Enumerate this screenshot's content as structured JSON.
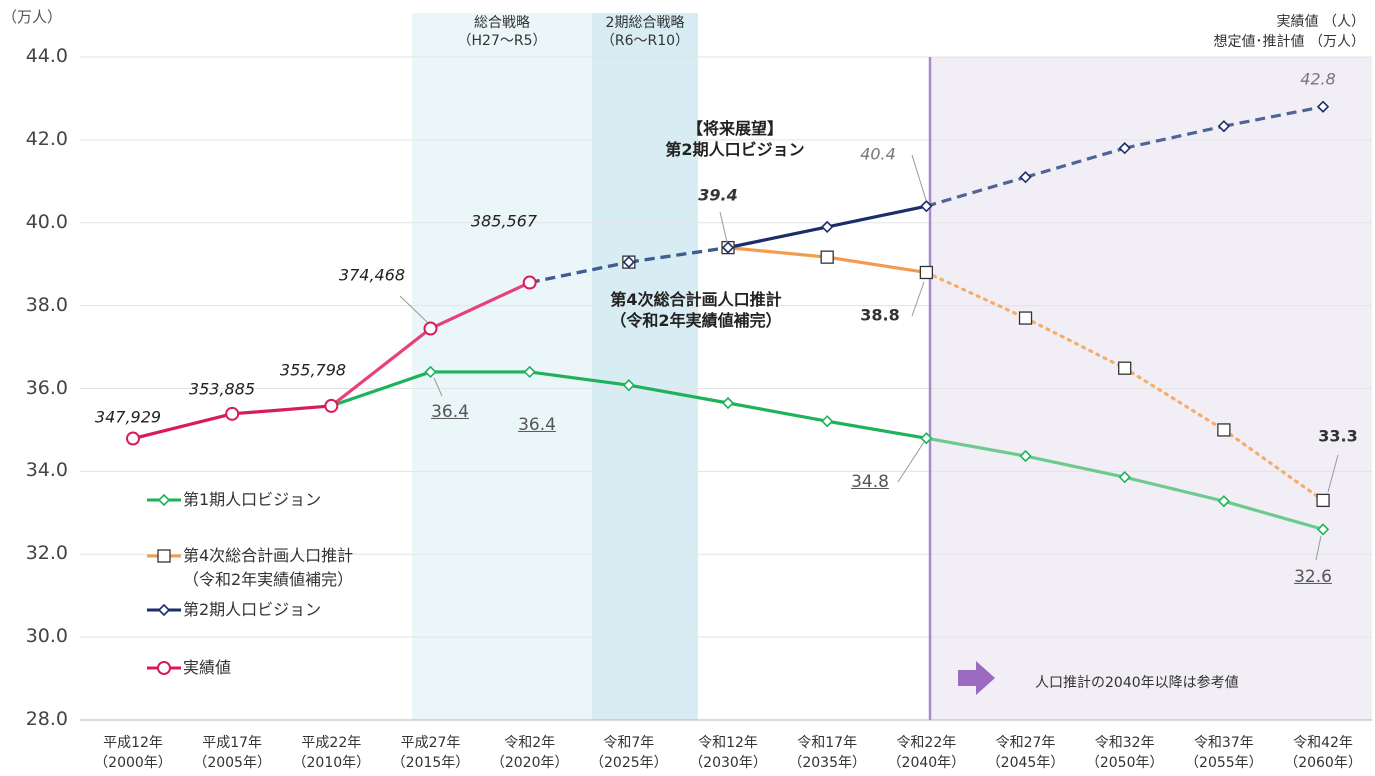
{
  "chart_data": {
    "type": "line",
    "y_unit": "（万人）",
    "unit_note": "実績値 （人）\n想定値･推計値 （万人）",
    "regions": [
      "総合戦略\n（H27～R5）",
      "2期総合戦略\n（R6～R10）"
    ],
    "reference_note": "人口推計の2040年以降は参考値",
    "annotations": [
      "【将来展望】\n第2期人口ビジョン",
      "第4次総合計画人口推計\n（令和2年実績値補完）"
    ],
    "categories": [
      "平成12年\n（2000年）",
      "平成17年\n（2005年）",
      "平成22年\n（2010年）",
      "平成27年\n（2015年）",
      "令和2年\n（2020年）",
      "令和7年\n（2025年）",
      "令和12年\n（2030年）",
      "令和17年\n（2035年）",
      "令和22年\n（2040年）",
      "令和27年\n（2045年）",
      "令和32年\n（2050年）",
      "令和37年\n（2055年）",
      "令和42年\n（2060年）"
    ],
    "ylim": [
      28,
      44
    ],
    "yticks": [
      {
        "value": 28,
        "label": "28.0"
      },
      {
        "value": 30,
        "label": "30.0"
      },
      {
        "value": 32,
        "label": "32.0"
      },
      {
        "value": 34,
        "label": "34.0"
      },
      {
        "value": 36,
        "label": "36.0"
      },
      {
        "value": 38,
        "label": "38.0"
      },
      {
        "value": 40,
        "label": "40.0"
      },
      {
        "value": 42,
        "label": "42.0"
      },
      {
        "value": 44,
        "label": "44.0"
      }
    ],
    "grid": true,
    "legend": "lower left",
    "series": [
      {
        "name": "第1期人口ビジョン",
        "color": "#1eb35a",
        "marker": "diamond",
        "values": [
          null,
          null,
          35.5798,
          36.4,
          36.4,
          36.08,
          35.65,
          35.21,
          34.8,
          34.37,
          33.86,
          33.28,
          32.6
        ],
        "value_labels": [
          null,
          null,
          null,
          "36.4",
          "36.4",
          null,
          null,
          null,
          "34.8",
          null,
          null,
          null,
          "32.6"
        ],
        "segments": [
          null,
          null,
          {
            "color": "#1eb35a",
            "style": "solid"
          },
          {
            "color": "#1eb35a",
            "style": "solid"
          },
          {
            "color": "#1eb35a",
            "style": "solid"
          },
          {
            "color": "#1eb35a",
            "style": "solid"
          },
          {
            "color": "#1eb35a",
            "style": "solid"
          },
          {
            "color": "#1eb35a",
            "style": "solid"
          },
          {
            "color": "#6ccb8c",
            "style": "solid"
          },
          {
            "color": "#6ccb8c",
            "style": "solid"
          },
          {
            "color": "#6ccb8c",
            "style": "solid"
          },
          {
            "color": "#6ccb8c",
            "style": "solid"
          }
        ]
      },
      {
        "name": "第4次総合計画人口推計\n（令和2年実績値補完）",
        "color": "#f39c4f",
        "marker": "square",
        "values": [
          null,
          null,
          null,
          null,
          38.5567,
          39.05,
          39.4,
          39.17,
          38.8,
          37.7,
          36.49,
          35.0,
          33.3
        ],
        "value_labels": [
          null,
          null,
          null,
          null,
          null,
          null,
          null,
          null,
          "38.8",
          null,
          null,
          null,
          "33.3"
        ],
        "segments": [
          null,
          null,
          null,
          null,
          {
            "color": "#3f5d91",
            "style": "dashed"
          },
          {
            "color": "#3f5d91",
            "style": "dashed"
          },
          {
            "color": "#f39c4f",
            "style": "solid"
          },
          {
            "color": "#f39c4f",
            "style": "solid"
          },
          {
            "color": "#f6ad6c",
            "style": "dotted"
          },
          {
            "color": "#f6ad6c",
            "style": "dotted"
          },
          {
            "color": "#f6ad6c",
            "style": "dotted"
          },
          {
            "color": "#f6ad6c",
            "style": "dotted"
          }
        ]
      },
      {
        "name": "第2期人口ビジョン",
        "color": "#1c2d6b",
        "marker": "diamond",
        "values": [
          null,
          null,
          null,
          null,
          38.5567,
          39.05,
          39.4,
          39.9,
          40.4,
          41.1,
          41.8,
          42.33,
          42.8
        ],
        "value_labels": [
          null,
          null,
          null,
          null,
          null,
          null,
          "39.4",
          null,
          "40.4",
          null,
          null,
          null,
          "42.8"
        ],
        "segments": [
          null,
          null,
          null,
          null,
          {
            "color": "#3f5d91",
            "style": "dashed"
          },
          {
            "color": "#3f5d91",
            "style": "dashed"
          },
          {
            "color": "#1c2d6b",
            "style": "solid"
          },
          {
            "color": "#1c2d6b",
            "style": "solid"
          },
          {
            "color": "#4f6598",
            "style": "dashed"
          },
          {
            "color": "#4f6598",
            "style": "dashed"
          },
          {
            "color": "#4f6598",
            "style": "dashed"
          },
          {
            "color": "#4f6598",
            "style": "dashed"
          }
        ]
      },
      {
        "name": "実績値",
        "color": "#d81b5a",
        "marker": "circle",
        "values": [
          34.7929,
          35.3885,
          35.5798,
          37.4468,
          38.5567,
          null,
          null,
          null,
          null,
          null,
          null,
          null,
          null
        ],
        "value_labels": [
          "347,929",
          "353,885",
          "355,798",
          "374,468",
          "385,567",
          null,
          null,
          null,
          null,
          null,
          null,
          null,
          null
        ],
        "segments": [
          {
            "color": "#d81b5a",
            "style": "solid"
          },
          {
            "color": "#d81b5a",
            "style": "solid"
          },
          {
            "color": "#e8407a",
            "style": "solid"
          },
          {
            "color": "#e8407a",
            "style": "solid"
          },
          null,
          null,
          null,
          null,
          null,
          null,
          null,
          null
        ]
      }
    ]
  }
}
